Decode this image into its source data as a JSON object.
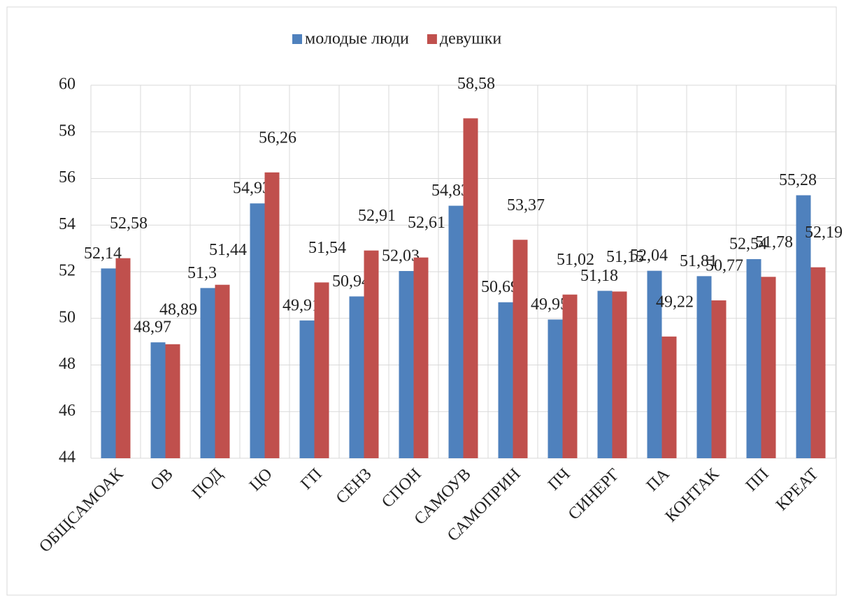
{
  "chart_data": {
    "type": "bar",
    "categories": [
      "ОБЩСАМОАК",
      "ОВ",
      "ПОД",
      "ЦО",
      "ГП",
      "СЕНЗ",
      "СПОН",
      "САМОУВ",
      "САМОПРИН",
      "ПЧ",
      "СИНЕРГ",
      "ПА",
      "КОНТАК",
      "ПП",
      "КРЕАТ"
    ],
    "series": [
      {
        "name": "молодые люди",
        "color": "#4f81bd",
        "values": [
          52.14,
          48.97,
          51.3,
          54.93,
          49.91,
          50.94,
          52.03,
          54.83,
          50.69,
          49.95,
          51.18,
          52.04,
          51.81,
          52.54,
          55.28
        ],
        "value_labels": [
          "52,14",
          "48,97",
          "51,3",
          "54,93",
          "49,91",
          "50,94",
          "52,03",
          "54,83",
          "50,69",
          "49,95",
          "51,18",
          "52,04",
          "51,81",
          "52,54",
          "55,28"
        ]
      },
      {
        "name": "девушки",
        "color": "#c0504d",
        "values": [
          52.58,
          48.89,
          51.44,
          56.26,
          51.54,
          52.91,
          52.61,
          58.58,
          53.37,
          51.02,
          51.15,
          49.22,
          50.77,
          51.78,
          52.19
        ],
        "value_labels": [
          "52,58",
          "48,89",
          "51,44",
          "56,26",
          "51,54",
          "52,91",
          "52,61",
          "58,58",
          "53,37",
          "51,02",
          "51,15",
          "49,22",
          "50,77",
          "51,78",
          "52,19"
        ]
      }
    ],
    "ylim": [
      44,
      60
    ],
    "yticks": [
      44,
      46,
      48,
      50,
      52,
      54,
      56,
      58,
      60
    ],
    "grid": true,
    "legend": "top"
  }
}
